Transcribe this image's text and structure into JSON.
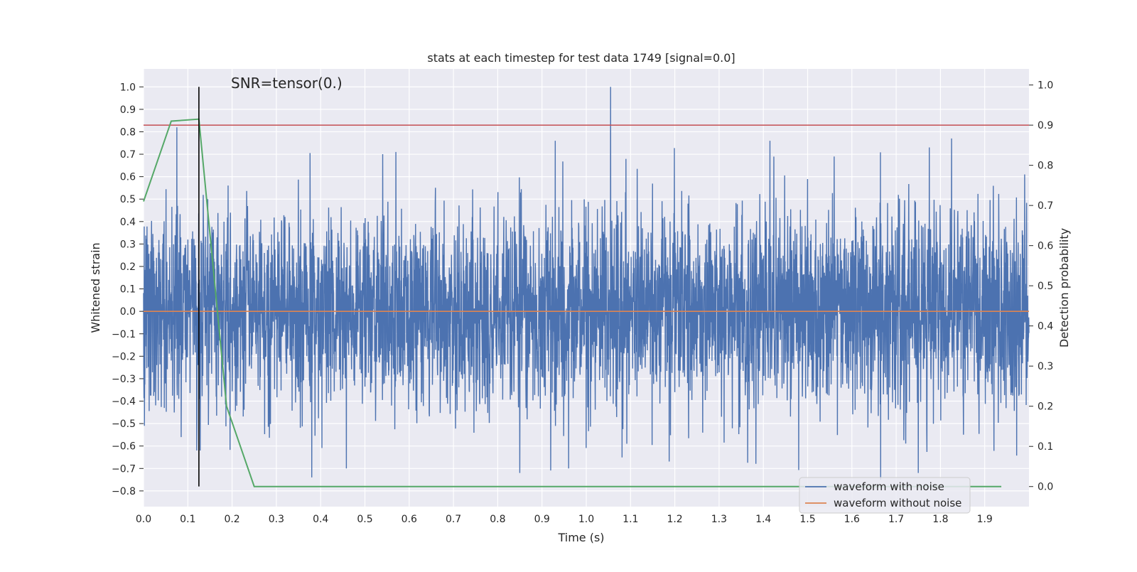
{
  "chart_data": {
    "type": "line",
    "title": "stats at each timestep for test data 1749 [signal=0.0]",
    "annotation": "SNR=tensor(0.)",
    "xlabel": "Time (s)",
    "ylabel": "Whitened strain",
    "y2label": "Detection probability",
    "xlim": [
      0.0,
      2.0
    ],
    "ylim": [
      -0.87,
      1.08
    ],
    "y2lim": [
      -0.05,
      1.04
    ],
    "xticks": [
      "0.0",
      "0.1",
      "0.2",
      "0.3",
      "0.4",
      "0.5",
      "0.6",
      "0.7",
      "0.8",
      "0.9",
      "1.0",
      "1.1",
      "1.2",
      "1.3",
      "1.4",
      "1.5",
      "1.6",
      "1.7",
      "1.8",
      "1.9"
    ],
    "yticks": [
      "−0.8",
      "−0.7",
      "−0.6",
      "−0.5",
      "−0.4",
      "−0.3",
      "−0.2",
      "−0.1",
      "0.0",
      "0.1",
      "0.2",
      "0.3",
      "0.4",
      "0.5",
      "0.6",
      "0.7",
      "0.8",
      "0.9",
      "1.0"
    ],
    "y2ticks": [
      "0.0",
      "0.1",
      "0.2",
      "0.3",
      "0.4",
      "0.5",
      "0.6",
      "0.7",
      "0.8",
      "0.9",
      "1.0"
    ],
    "grid": true,
    "legend": {
      "location": "bottom-right",
      "entries": [
        "waveform with noise",
        "waveform without noise"
      ]
    },
    "colors": {
      "noisy": "#4c72b0",
      "clean": "#dd8452",
      "probability": "#55a868",
      "threshold": "#c44e52",
      "marker": "#000000",
      "background": "#eaeaf2",
      "grid": "#ffffff"
    },
    "series": [
      {
        "name": "waveform with noise",
        "axis": "left",
        "style": "noise",
        "n": 4096,
        "x_range": [
          0.0,
          2.0
        ],
        "std": 0.22,
        "peaks": [
          [
            0.002,
            -0.51
          ],
          [
            0.075,
            0.82
          ],
          [
            0.085,
            -0.56
          ],
          [
            0.12,
            -0.62
          ],
          [
            0.128,
            -0.62
          ],
          [
            0.145,
            0.5
          ],
          [
            0.38,
            -0.74
          ],
          [
            0.458,
            -0.7
          ],
          [
            0.54,
            0.7
          ],
          [
            0.57,
            0.71
          ],
          [
            0.85,
            -0.72
          ],
          [
            0.93,
            0.76
          ],
          [
            0.96,
            -0.7
          ],
          [
            1.055,
            1.0
          ],
          [
            1.415,
            0.76
          ],
          [
            1.56,
            0.69
          ],
          [
            1.665,
            -0.75
          ],
          [
            1.75,
            -0.72
          ],
          [
            1.775,
            0.73
          ],
          [
            1.825,
            0.77
          ],
          [
            1.99,
            0.61
          ]
        ]
      },
      {
        "name": "waveform without noise",
        "axis": "left",
        "x": [
          0.0,
          2.0
        ],
        "y": [
          0.0,
          0.0
        ]
      },
      {
        "name": "detection probability",
        "axis": "right",
        "x": [
          0.0,
          0.0625,
          0.125,
          0.1875,
          0.25,
          1.9375
        ],
        "y": [
          0.71,
          0.91,
          0.915,
          0.2,
          0.0,
          0.0
        ]
      }
    ],
    "hlines": [
      {
        "name": "threshold",
        "axis": "right",
        "y": 0.9
      }
    ],
    "vlines": [
      {
        "name": "event-marker",
        "x": 0.125,
        "y_range": [
          -0.78,
          1.0
        ]
      }
    ]
  }
}
